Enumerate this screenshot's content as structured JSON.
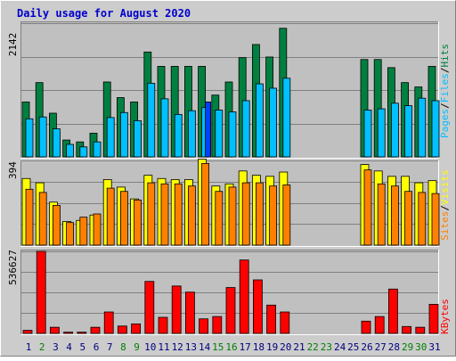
{
  "title": "Daily usage for August 2020",
  "colors": {
    "frame_bg": "#cccccc",
    "plot_bg": "#c0c0c0",
    "title": "#0000cc",
    "hits": "#008040",
    "files": "#00c0ff",
    "pages": "#0040ff",
    "visits": "#ffff00",
    "sites": "#ff8000",
    "kbytes": "#ff0000",
    "weekday": "#000080",
    "weekend": "#008000",
    "grid": "#808080"
  },
  "chart_data": [
    {
      "type": "bar",
      "name": "hits-files-pages",
      "ymax_label": "2142",
      "ymax": 2142,
      "legend": [
        "Pages",
        "/",
        "Files",
        "/",
        "Hits"
      ],
      "categories": [
        "1",
        "2",
        "3",
        "4",
        "5",
        "6",
        "7",
        "8",
        "9",
        "10",
        "11",
        "12",
        "13",
        "14",
        "15",
        "16",
        "17",
        "18",
        "19",
        "20",
        "21",
        "22",
        "23",
        "24",
        "25",
        "26",
        "27",
        "28",
        "29",
        "30",
        "31"
      ],
      "series": [
        {
          "name": "Hits",
          "values": [
            880,
            1190,
            700,
            270,
            240,
            380,
            1200,
            950,
            880,
            1680,
            1450,
            1450,
            1450,
            1450,
            990,
            1200,
            1590,
            1800,
            1600,
            2060,
            0,
            0,
            0,
            0,
            0,
            1560,
            1560,
            1430,
            1190,
            1120,
            1450
          ]
        },
        {
          "name": "Files",
          "values": [
            610,
            640,
            450,
            200,
            160,
            240,
            630,
            710,
            580,
            1180,
            930,
            680,
            740,
            790,
            750,
            720,
            900,
            1170,
            1100,
            1260,
            0,
            0,
            0,
            0,
            0,
            750,
            770,
            860,
            820,
            940,
            900
          ]
        },
        {
          "name": "Pages",
          "values": [
            0,
            0,
            0,
            0,
            0,
            0,
            0,
            0,
            0,
            0,
            0,
            0,
            0,
            880,
            0,
            0,
            0,
            0,
            0,
            0,
            0,
            0,
            0,
            0,
            0,
            0,
            0,
            0,
            0,
            0,
            0
          ]
        }
      ]
    },
    {
      "type": "bar",
      "name": "visits-sites",
      "ymax_label": "394",
      "ymax": 394,
      "legend": [
        "Sites",
        "/",
        "Visits"
      ],
      "categories": [
        "1",
        "2",
        "3",
        "4",
        "5",
        "6",
        "7",
        "8",
        "9",
        "10",
        "11",
        "12",
        "13",
        "14",
        "15",
        "16",
        "17",
        "18",
        "19",
        "20",
        "21",
        "22",
        "23",
        "24",
        "25",
        "26",
        "27",
        "28",
        "29",
        "30",
        "31"
      ],
      "series": [
        {
          "name": "Visits",
          "values": [
            310,
            290,
            200,
            110,
            115,
            140,
            305,
            270,
            215,
            325,
            310,
            305,
            305,
            400,
            275,
            285,
            345,
            325,
            320,
            340,
            0,
            0,
            0,
            0,
            0,
            375,
            345,
            320,
            320,
            290,
            300
          ]
        },
        {
          "name": "Sites",
          "values": [
            260,
            245,
            185,
            105,
            130,
            145,
            265,
            250,
            210,
            290,
            285,
            285,
            275,
            380,
            250,
            270,
            290,
            290,
            275,
            280,
            0,
            0,
            0,
            0,
            0,
            350,
            285,
            275,
            250,
            245,
            240
          ]
        }
      ]
    },
    {
      "type": "bar",
      "name": "kbytes",
      "ymax_label": "536627",
      "ymax": 536627,
      "legend": [
        "KBytes"
      ],
      "categories": [
        "1",
        "2",
        "3",
        "4",
        "5",
        "6",
        "7",
        "8",
        "9",
        "10",
        "11",
        "12",
        "13",
        "14",
        "15",
        "16",
        "17",
        "18",
        "19",
        "20",
        "21",
        "22",
        "23",
        "24",
        "25",
        "26",
        "27",
        "28",
        "29",
        "30",
        "31"
      ],
      "series": [
        {
          "name": "KBytes",
          "values": [
            20000,
            536627,
            40000,
            8000,
            8000,
            40000,
            140000,
            48000,
            62000,
            340000,
            105000,
            310000,
            270000,
            95000,
            110000,
            300000,
            480000,
            350000,
            185000,
            140000,
            0,
            0,
            0,
            0,
            0,
            80000,
            110000,
            290000,
            45000,
            40000,
            190000
          ]
        }
      ]
    }
  ],
  "day_colors": [
    "weekday",
    "weekend",
    "weekday",
    "weekday",
    "weekday",
    "weekday",
    "weekday",
    "weekend",
    "weekend",
    "weekday",
    "weekday",
    "weekday",
    "weekday",
    "weekday",
    "weekend",
    "weekend",
    "weekday",
    "weekday",
    "weekday",
    "weekday",
    "weekday",
    "weekend",
    "weekend",
    "weekday",
    "weekday",
    "weekday",
    "weekday",
    "weekday",
    "weekend",
    "weekend",
    "weekday"
  ]
}
